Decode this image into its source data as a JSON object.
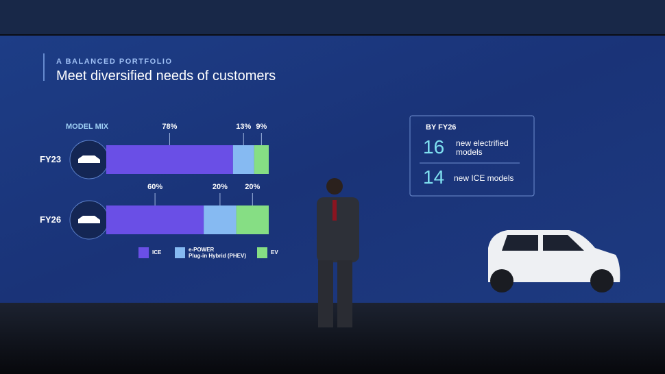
{
  "slide": {
    "kicker": "A BALANCED PORTFOLIO",
    "title": "Meet diversified needs of customers"
  },
  "chart_data": {
    "type": "stacked-bar",
    "orientation": "horizontal",
    "label": "MODEL MIX",
    "categories": [
      "FY23",
      "FY26"
    ],
    "series": [
      {
        "name": "ICE",
        "color": "#6a4fe6",
        "values": [
          78,
          60
        ],
        "value_labels": [
          "78%",
          "60%"
        ]
      },
      {
        "name": "e-POWER\nPlug-in Hybrid (PHEV)",
        "color": "#86baf2",
        "values": [
          13,
          20
        ],
        "value_labels": [
          "13%",
          "20%"
        ]
      },
      {
        "name": "EV",
        "color": "#86de84",
        "values": [
          9,
          20
        ],
        "value_labels": [
          "9%",
          "20%"
        ]
      }
    ],
    "xlim": [
      0,
      100
    ]
  },
  "info_box": {
    "title": "BY FY26",
    "items": [
      {
        "number": "16",
        "text": "new electrified\nmodels"
      },
      {
        "number": "14",
        "text": "new ICE models"
      }
    ]
  }
}
